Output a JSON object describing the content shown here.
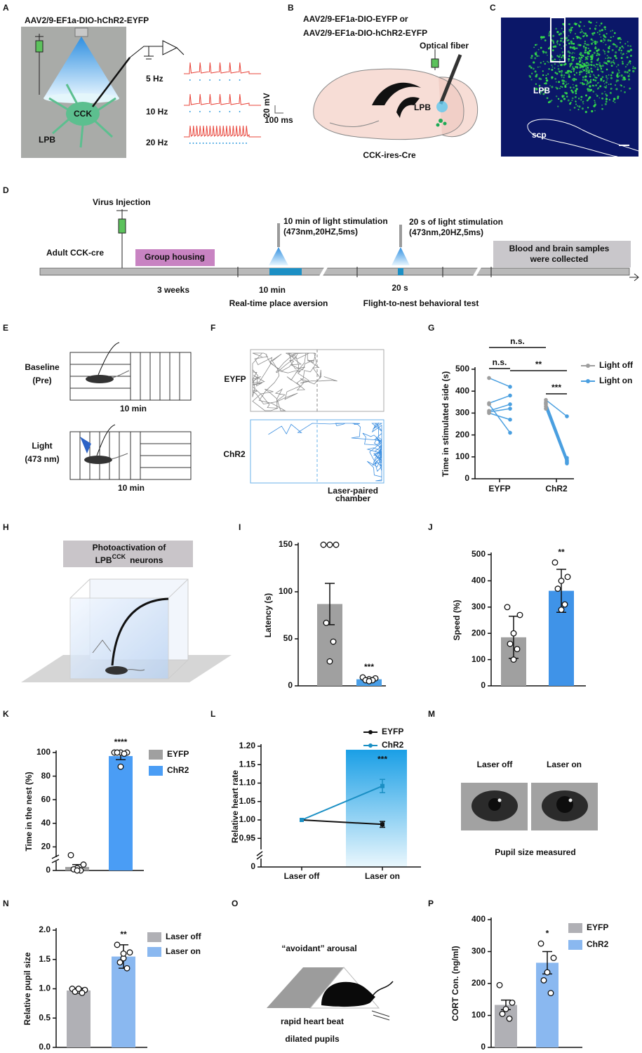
{
  "panel_labels": [
    "A",
    "B",
    "C",
    "D",
    "E",
    "F",
    "G",
    "H",
    "I",
    "J",
    "K",
    "L",
    "M",
    "N",
    "O",
    "P"
  ],
  "panel_a": {
    "vector": "AAV2/9-EF1a-DIO-hChR2-EYFP",
    "cell": "CCK",
    "region": "LPB",
    "frequencies": [
      "5 Hz",
      "10 Hz",
      "20 Hz"
    ],
    "scale_v": "20 mV",
    "scale_t": "100 ms"
  },
  "panel_b": {
    "vector_1": "AAV2/9-EF1a-DIO-EYFP  or",
    "vector_2": "AAV2/9-EF1a-DIO-hChR2-EYFP",
    "fiber": "Optical fiber",
    "region": "LPB",
    "mouse": "CCK-ires-Cre"
  },
  "panel_c": {
    "region": "LPB",
    "tract": "scp"
  },
  "panel_d": {
    "injection": "Virus Injection",
    "subject": "Adult CCK-cre",
    "housing": "Group housing",
    "housing_duration": "3 weeks",
    "stim_1": [
      "10 min of  light stimulation",
      "(473nm,20HZ,5ms)"
    ],
    "stim_1_duration": "10 min",
    "stim_2": [
      "20 s of  light stimulation",
      "(473nm,20HZ,5ms)"
    ],
    "stim_2_duration": "20 s",
    "samples": [
      "Blood and brain samples",
      "were collected"
    ],
    "test_1": "Real-time place aversion",
    "test_2": "Flight-to-nest behavioral test"
  },
  "panel_e": {
    "baseline": [
      "Baseline",
      "(Pre)"
    ],
    "light": [
      "Light",
      "(473 nm)"
    ],
    "duration_1": "10 min",
    "duration_2": "10 min"
  },
  "panel_f": {
    "group_1": "EYFP",
    "group_2": "ChR2",
    "chamber": [
      "Laser-paired",
      "chamber"
    ]
  },
  "panel_h": {
    "title_1": "Photoactivation of",
    "title_2a": "LPB",
    "title_2b": "CCK",
    "title_2c": "neurons"
  },
  "panel_m": {
    "off": "Laser off",
    "on": "Laser on",
    "caption": "Pupil size measured"
  },
  "panel_o": {
    "title": "“avoidant” arousal",
    "line_1": "rapid heart beat",
    "line_2": "dilated pupils"
  },
  "chart_data": [
    {
      "type": "paired",
      "ylabel": "Time in stimulated side (s)",
      "categories": [
        "EYFP",
        "ChR2"
      ],
      "series": [
        {
          "name": "Light off",
          "color": "#9e9e9e",
          "values": [
            [
              460,
              345,
              310,
              300,
              340,
              305
            ],
            [
              360,
              350,
              345,
              340,
              330,
              320
            ]
          ]
        },
        {
          "name": "Light on",
          "color": "#4a9fe0",
          "values": [
            [
              420,
              380,
              340,
              270,
              210,
              320
            ],
            [
              285,
              95,
              85,
              80,
              75,
              70
            ]
          ]
        }
      ],
      "ylim": [
        0,
        500
      ],
      "yticks": [
        0,
        100,
        200,
        300,
        400,
        500
      ],
      "annotations": [
        "n.s.",
        "n.s.",
        "**",
        "***"
      ]
    },
    {
      "type": "bar",
      "ylabel": "Latency (s)",
      "series": [
        {
          "color": "#a0a0a0",
          "value": 87,
          "error": 22,
          "points": [
            150,
            150,
            150,
            67,
            47,
            26
          ]
        },
        {
          "color": "#4a9fe8",
          "value": 7,
          "error": 1.5,
          "points": [
            9,
            8,
            7,
            6,
            6,
            5
          ]
        }
      ],
      "ylim": [
        0,
        150
      ],
      "yticks": [
        0,
        50,
        100,
        150
      ],
      "annotations": [
        "***"
      ]
    },
    {
      "type": "bar",
      "ylabel": "Speed (%)",
      "series": [
        {
          "color": "#a0a0a0",
          "value": 185,
          "error": 80,
          "points": [
            300,
            270,
            200,
            160,
            140,
            100
          ]
        },
        {
          "color": "#3f93e8",
          "value": 362,
          "error": 82,
          "points": [
            470,
            415,
            400,
            370,
            310,
            290
          ]
        }
      ],
      "ylim": [
        0,
        500
      ],
      "yticks": [
        0,
        100,
        200,
        300,
        400,
        500
      ],
      "annotations": [
        "**"
      ]
    },
    {
      "type": "bar",
      "ylabel": "Time in the nest (%)",
      "series": [
        {
          "name": "EYFP",
          "color": "#a0a0a0",
          "value": 3,
          "error": 2,
          "points": [
            13,
            5,
            2,
            1,
            0,
            0
          ]
        },
        {
          "name": "ChR2",
          "color": "#4a9df5",
          "value": 97,
          "error": 3,
          "points": [
            100,
            100,
            100,
            100,
            99,
            88
          ]
        }
      ],
      "ylim": [
        0,
        100
      ],
      "yticks": [
        0,
        20,
        40,
        60,
        80,
        100
      ],
      "annotations": [
        "****"
      ]
    },
    {
      "type": "line",
      "ylabel": "Relative heart rate",
      "categories": [
        "Laser off",
        "Laser on"
      ],
      "series": [
        {
          "name": "EYFP",
          "color": "#111111",
          "values": [
            1.0,
            0.988
          ],
          "errors": [
            null,
            0.008
          ]
        },
        {
          "name": "ChR2",
          "color": "#1a8fc4",
          "values": [
            1.0,
            1.092
          ],
          "errors": [
            null,
            0.018
          ]
        }
      ],
      "ylim": [
        0.92,
        1.2
      ],
      "yticks": [
        0.95,
        {
          "value": 1,
          "label": "1.00"
        },
        1.05,
        {
          "value": 1.1,
          "label": "1.10"
        },
        1.15,
        {
          "value": 1.2,
          "label": "1.20"
        }
      ],
      "break_ytick": 0,
      "annotations": [
        "***"
      ]
    },
    {
      "type": "bar",
      "ylabel": "Relative pupil size",
      "series": [
        {
          "name": "Laser off",
          "color": "#b0b0b5",
          "value": 0.97,
          "error": 0.04,
          "points": [
            1.0,
            0.98,
            0.97,
            0.95,
            0.93,
            1.0
          ]
        },
        {
          "name": "Laser on",
          "color": "#8ab8f0",
          "value": 1.55,
          "error": 0.2,
          "points": [
            1.75,
            1.62,
            1.52,
            1.45,
            1.35,
            1.6
          ]
        }
      ],
      "ylim": [
        0,
        2
      ],
      "yticks": [
        {
          "value": 0,
          "label": "0.0"
        },
        0.5,
        {
          "value": 1,
          "label": "1.0"
        },
        1.5,
        {
          "value": 2,
          "label": "2.0"
        }
      ],
      "annotations": [
        "**"
      ]
    },
    {
      "type": "bar",
      "ylabel": "CORT Con. (ng/ml)",
      "series": [
        {
          "name": "EYFP",
          "color": "#b0b0b5",
          "value": 133,
          "error": 15,
          "points": [
            195,
            140,
            120,
            105,
            90
          ]
        },
        {
          "name": "ChR2",
          "color": "#8ab8f0",
          "value": 265,
          "error": 35,
          "points": [
            325,
            280,
            235,
            210,
            170
          ]
        }
      ],
      "ylim": [
        0,
        400
      ],
      "yticks": [
        0,
        100,
        200,
        300,
        400
      ],
      "annotations": [
        "*"
      ]
    }
  ]
}
